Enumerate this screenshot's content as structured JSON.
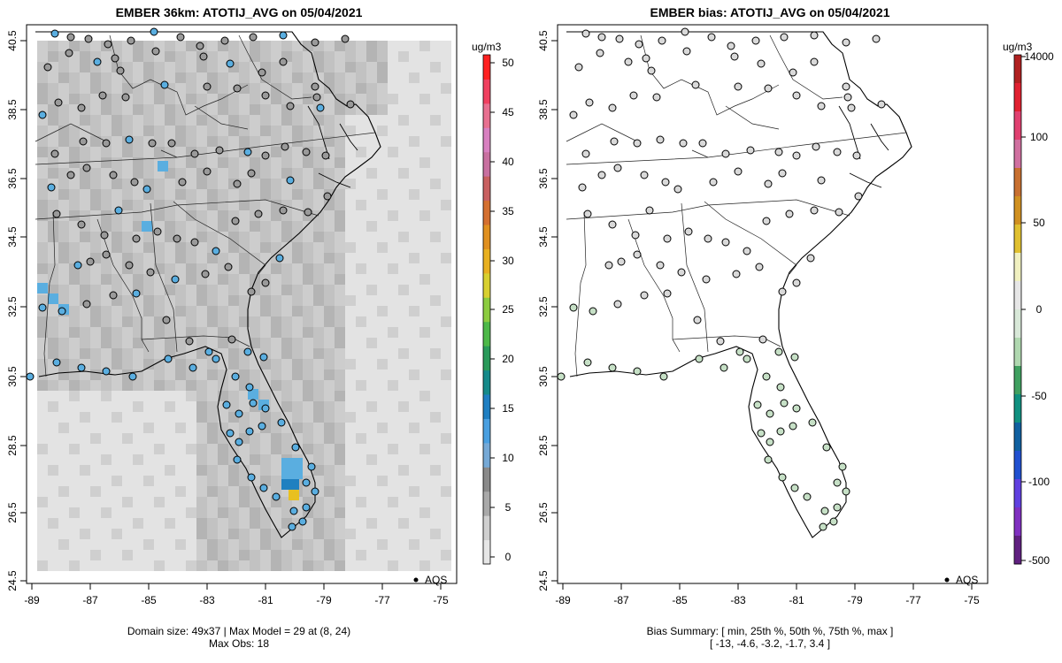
{
  "left_panel": {
    "title": "EMBER 36km: ATOTIJ_AVG on 05/04/2021",
    "footer_line1": "Domain size: 49x37 | Max Model = 29 at (8, 24)",
    "footer_line2": "Max Obs: 18",
    "legend_label": "AQS",
    "colorbar": {
      "unit": "ug/m3",
      "ticks": [
        0,
        5,
        10,
        15,
        20,
        25,
        30,
        35,
        40,
        45,
        50
      ],
      "colors": [
        "#e6e6e6",
        "#cfcfcf",
        "#a9a9a9",
        "#8a8a8a",
        "#76a9d6",
        "#4a9fe0",
        "#1f7fc2",
        "#158a8a",
        "#2a9a5a",
        "#4db848",
        "#8ccc40",
        "#d8d030",
        "#e8b020",
        "#e09020",
        "#d47030",
        "#c86060",
        "#c870a0",
        "#d880c0",
        "#e87090",
        "#f04060",
        "#ff2020"
      ]
    }
  },
  "right_panel": {
    "title": "EMBER bias: ATOTIJ_AVG on 05/04/2021",
    "footer_line1": "Bias Summary: [ min, 25th %, 50th %, 75th %, max ]",
    "footer_line2": "[ -13,   -4.6,   -3.2,   -1.7,   3.4 ]",
    "legend_label": "AQS",
    "colorbar": {
      "unit": "ug/m3",
      "ticks": [
        14000,
        100,
        50,
        0,
        -50,
        -100,
        -500
      ],
      "colors": [
        "#b02020",
        "#e02030",
        "#e04070",
        "#d070a0",
        "#c87030",
        "#d09020",
        "#e0c030",
        "#f0f0c0",
        "#e6e6e6",
        "#d8e8d8",
        "#b0d8b0",
        "#40a060",
        "#109080",
        "#1060a0",
        "#2050d0",
        "#6040e0",
        "#8030c0",
        "#602080"
      ]
    }
  },
  "axes": {
    "x_ticks": [
      "-89",
      "-87",
      "-85",
      "-83",
      "-81",
      "-79",
      "-77",
      "-75"
    ],
    "y_ticks": [
      "40.5",
      "38.5",
      "36.5",
      "34.5",
      "32.5",
      "30.5",
      "28.5",
      "26.5",
      "24.5"
    ]
  },
  "colors": {
    "obs_blue": "#5aaee0",
    "obs_gray": "#9a9a9a",
    "bias_gray": "#d9d9d9",
    "bias_green": "#c6e0c6",
    "hotspot_yellow": "#e8c020",
    "hotspot_blue": "#2080c0"
  }
}
